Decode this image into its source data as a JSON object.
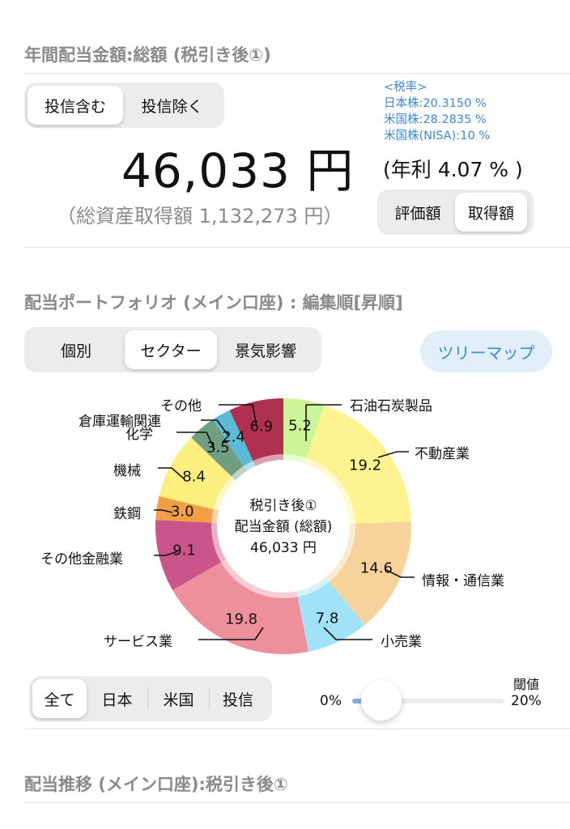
{
  "summary": {
    "title": "年間配当金額:総額 (税引き後①)",
    "fund_toggle": {
      "options": [
        "投信含む",
        "投信除く"
      ],
      "selected": 0
    },
    "amount": "46,033 円",
    "acquisition_total": "（総資産取得額 1,132,273 円）",
    "tax_rates": [
      "<税率>",
      "日本株:20.3150 %",
      "米国株:28.2835 %",
      "米国株(NISA):10 %"
    ],
    "yield": "(年利 4.07 % )",
    "basis_toggle": {
      "options": [
        "評価額",
        "取得額"
      ],
      "selected": 1
    }
  },
  "portfolio": {
    "title": "配当ポートフォリオ (メイン口座) : 編集順[昇順]",
    "view_tabs": {
      "options": [
        "個別",
        "セクター",
        "景気影響"
      ],
      "selected": 1
    },
    "treemap_button": "ツリーマップ",
    "center": {
      "line1": "税引き後①",
      "line2": "配当金額 (総額)",
      "line3": "46,033 円"
    },
    "region_tabs": {
      "options": [
        "全て",
        "日本",
        "米国",
        "投信"
      ],
      "selected": 0
    },
    "threshold": {
      "label": "閾値",
      "min_label": "0%",
      "max_label": "20%",
      "value_percent": 1
    }
  },
  "chart_data": {
    "type": "pie",
    "title": "税引き後① 配当金額 (総額) 46,033 円",
    "unit": "%",
    "slices": [
      {
        "label": "石油石炭製品",
        "value": 5.2,
        "display": "5.2",
        "color": "#ccf59a"
      },
      {
        "label": "不動産業",
        "value": 19.2,
        "display": "19.2",
        "color": "#fdf390"
      },
      {
        "label": "情報・通信業",
        "value": 14.6,
        "display": "14.6",
        "color": "#f7d39b"
      },
      {
        "label": "小売業",
        "value": 7.8,
        "display": "7.8",
        "color": "#a0e2f8"
      },
      {
        "label": "サービス業",
        "value": 19.8,
        "display": "19.8",
        "color": "#ee8f9c"
      },
      {
        "label": "その他金融業",
        "value": 9.1,
        "display": "9.1",
        "color": "#c9558b"
      },
      {
        "label": "鉄鋼",
        "value": 3.0,
        "display": "3.0",
        "color": "#f0a043"
      },
      {
        "label": "機械",
        "value": 8.4,
        "display": "8.4",
        "color": "#fbef7e"
      },
      {
        "label": "化学",
        "value": 3.5,
        "display": "3.5",
        "color": "#6f9f80"
      },
      {
        "label": "倉庫運輸関連",
        "value": 2.4,
        "display": "2.4",
        "color": "#5bbad6"
      },
      {
        "label": "その他",
        "value": 6.9,
        "display": "6.9",
        "color": "#b0304f"
      }
    ]
  },
  "history": {
    "title": "配当推移 (メイン口座):税引き後①"
  }
}
